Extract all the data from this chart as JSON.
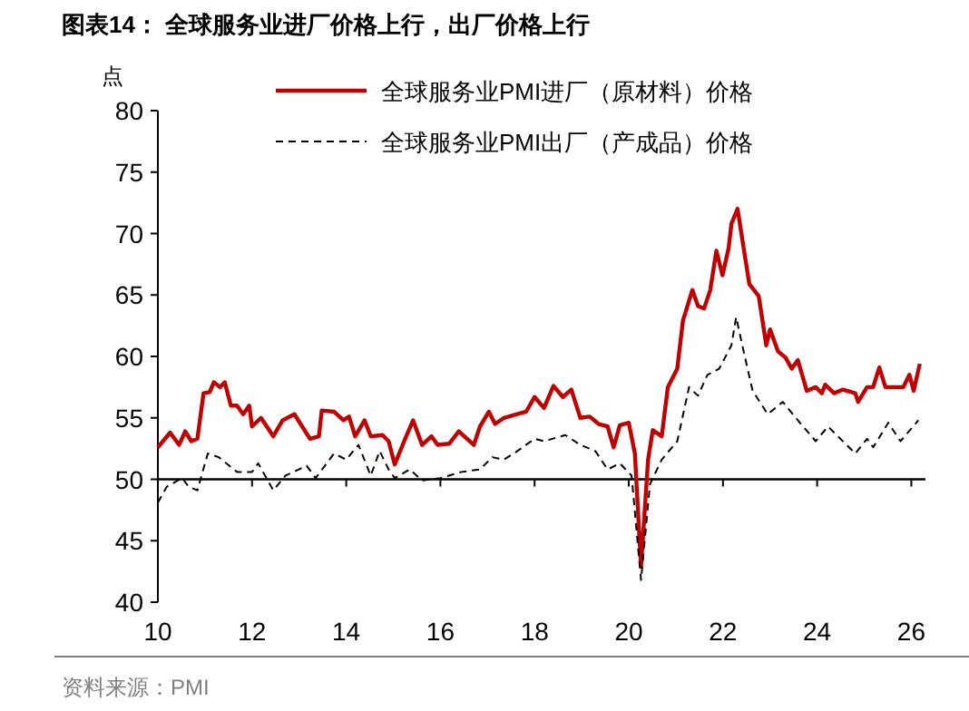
{
  "chart_data": {
    "type": "line",
    "title": "图表14： 全球服务业进厂价格上行，出厂价格上行",
    "ylabel": "点",
    "annotations": [
      "资料来源：PMI"
    ],
    "xlim": [
      10,
      26.3
    ],
    "xticks": [
      10,
      12,
      14,
      16,
      18,
      20,
      22,
      24,
      26
    ],
    "ylim": [
      40,
      80
    ],
    "yticks": [
      40,
      45,
      50,
      55,
      60,
      65,
      70,
      75,
      80
    ],
    "grid": false,
    "legend": "top",
    "marker": "none",
    "ref_lines": [
      {
        "axis": "y",
        "value": 50,
        "color": "#000000",
        "line_style": "solid"
      }
    ],
    "series": [
      {
        "name": "全球服务业PMI进厂（原材料）价格",
        "color": "#c00000",
        "line_style": "solid",
        "x": [
          10.0,
          10.26,
          10.45,
          10.58,
          10.71,
          10.84,
          10.97,
          11.1,
          11.19,
          11.32,
          11.42,
          11.55,
          11.68,
          11.81,
          11.94,
          12.0,
          12.19,
          12.45,
          12.65,
          12.9,
          13.03,
          13.23,
          13.42,
          13.48,
          13.74,
          13.94,
          14.06,
          14.19,
          14.39,
          14.52,
          14.77,
          14.9,
          15.03,
          15.23,
          15.42,
          15.61,
          15.81,
          15.94,
          16.19,
          16.39,
          16.71,
          16.84,
          17.03,
          17.16,
          17.35,
          17.63,
          17.82,
          18.0,
          18.2,
          18.4,
          18.6,
          18.78,
          18.97,
          19.17,
          19.36,
          19.55,
          19.68,
          19.81,
          20.0,
          20.13,
          20.26,
          20.41,
          20.51,
          20.7,
          20.83,
          21.03,
          21.15,
          21.35,
          21.47,
          21.6,
          21.73,
          21.86,
          21.99,
          22.12,
          22.18,
          22.31,
          22.44,
          22.56,
          22.76,
          22.92,
          23.0,
          23.17,
          23.33,
          23.46,
          23.59,
          23.78,
          23.97,
          24.1,
          24.17,
          24.36,
          24.55,
          24.81,
          24.87,
          25.06,
          25.19,
          25.32,
          25.45,
          25.83,
          25.96,
          26.05,
          26.18
        ],
        "values": [
          52.6,
          53.8,
          52.8,
          53.9,
          53.1,
          53.3,
          57.0,
          57.1,
          57.9,
          57.5,
          57.9,
          56.0,
          56.0,
          55.3,
          56.0,
          54.3,
          55.0,
          53.5,
          54.8,
          55.3,
          54.5,
          53.3,
          53.5,
          55.6,
          55.5,
          54.8,
          55.1,
          53.5,
          54.8,
          53.5,
          53.6,
          53.1,
          51.2,
          53.1,
          54.8,
          52.8,
          53.5,
          52.8,
          52.9,
          53.9,
          52.8,
          54.3,
          55.5,
          54.5,
          55.0,
          55.3,
          55.5,
          56.7,
          55.8,
          57.6,
          56.7,
          57.3,
          55.0,
          55.1,
          54.5,
          54.3,
          52.6,
          54.4,
          54.6,
          52.1,
          42.9,
          51.6,
          54.0,
          53.5,
          57.5,
          59.0,
          62.9,
          65.4,
          64.1,
          63.9,
          65.4,
          68.6,
          66.6,
          68.8,
          70.8,
          72.0,
          68.8,
          65.9,
          64.9,
          60.9,
          62.2,
          60.4,
          59.9,
          59.0,
          59.7,
          57.2,
          57.5,
          57.0,
          57.7,
          57.0,
          57.3,
          57.0,
          56.3,
          57.5,
          57.5,
          59.1,
          57.5,
          57.5,
          58.5,
          57.2,
          59.4
        ]
      },
      {
        "name": "全球服务业PMI出厂（产成品）价格",
        "color": "#000000",
        "line_style": "dashed",
        "x": [
          10.0,
          10.19,
          10.52,
          10.65,
          10.84,
          11.06,
          11.29,
          11.68,
          12.0,
          12.13,
          12.45,
          12.71,
          13.16,
          13.35,
          13.74,
          14.0,
          14.26,
          14.52,
          14.71,
          14.9,
          15.03,
          15.35,
          15.61,
          16.0,
          16.45,
          16.84,
          17.1,
          17.35,
          17.6,
          18.0,
          18.2,
          18.65,
          18.97,
          19.29,
          19.55,
          19.81,
          20.06,
          20.26,
          20.45,
          20.7,
          21.03,
          21.28,
          21.47,
          21.67,
          21.92,
          22.18,
          22.28,
          22.44,
          22.63,
          22.95,
          23.27,
          23.59,
          23.97,
          24.23,
          24.81,
          25.06,
          25.19,
          25.51,
          25.77,
          26.15
        ],
        "values": [
          48.1,
          49.4,
          50.1,
          49.4,
          49.1,
          52.1,
          51.8,
          50.6,
          50.6,
          51.3,
          49.1,
          50.3,
          51.1,
          50.1,
          52.1,
          51.6,
          52.8,
          50.3,
          52.3,
          50.8,
          50.1,
          50.8,
          49.9,
          50.1,
          50.6,
          50.8,
          51.8,
          51.6,
          52.2,
          53.3,
          53.1,
          53.6,
          52.8,
          52.3,
          50.8,
          51.3,
          50.3,
          41.8,
          49.6,
          51.6,
          53.1,
          57.5,
          56.8,
          58.5,
          59.0,
          60.9,
          63.2,
          60.4,
          57.2,
          55.3,
          56.3,
          54.8,
          53.1,
          54.3,
          52.1,
          53.3,
          52.6,
          54.6,
          53.1,
          54.8
        ]
      }
    ]
  }
}
